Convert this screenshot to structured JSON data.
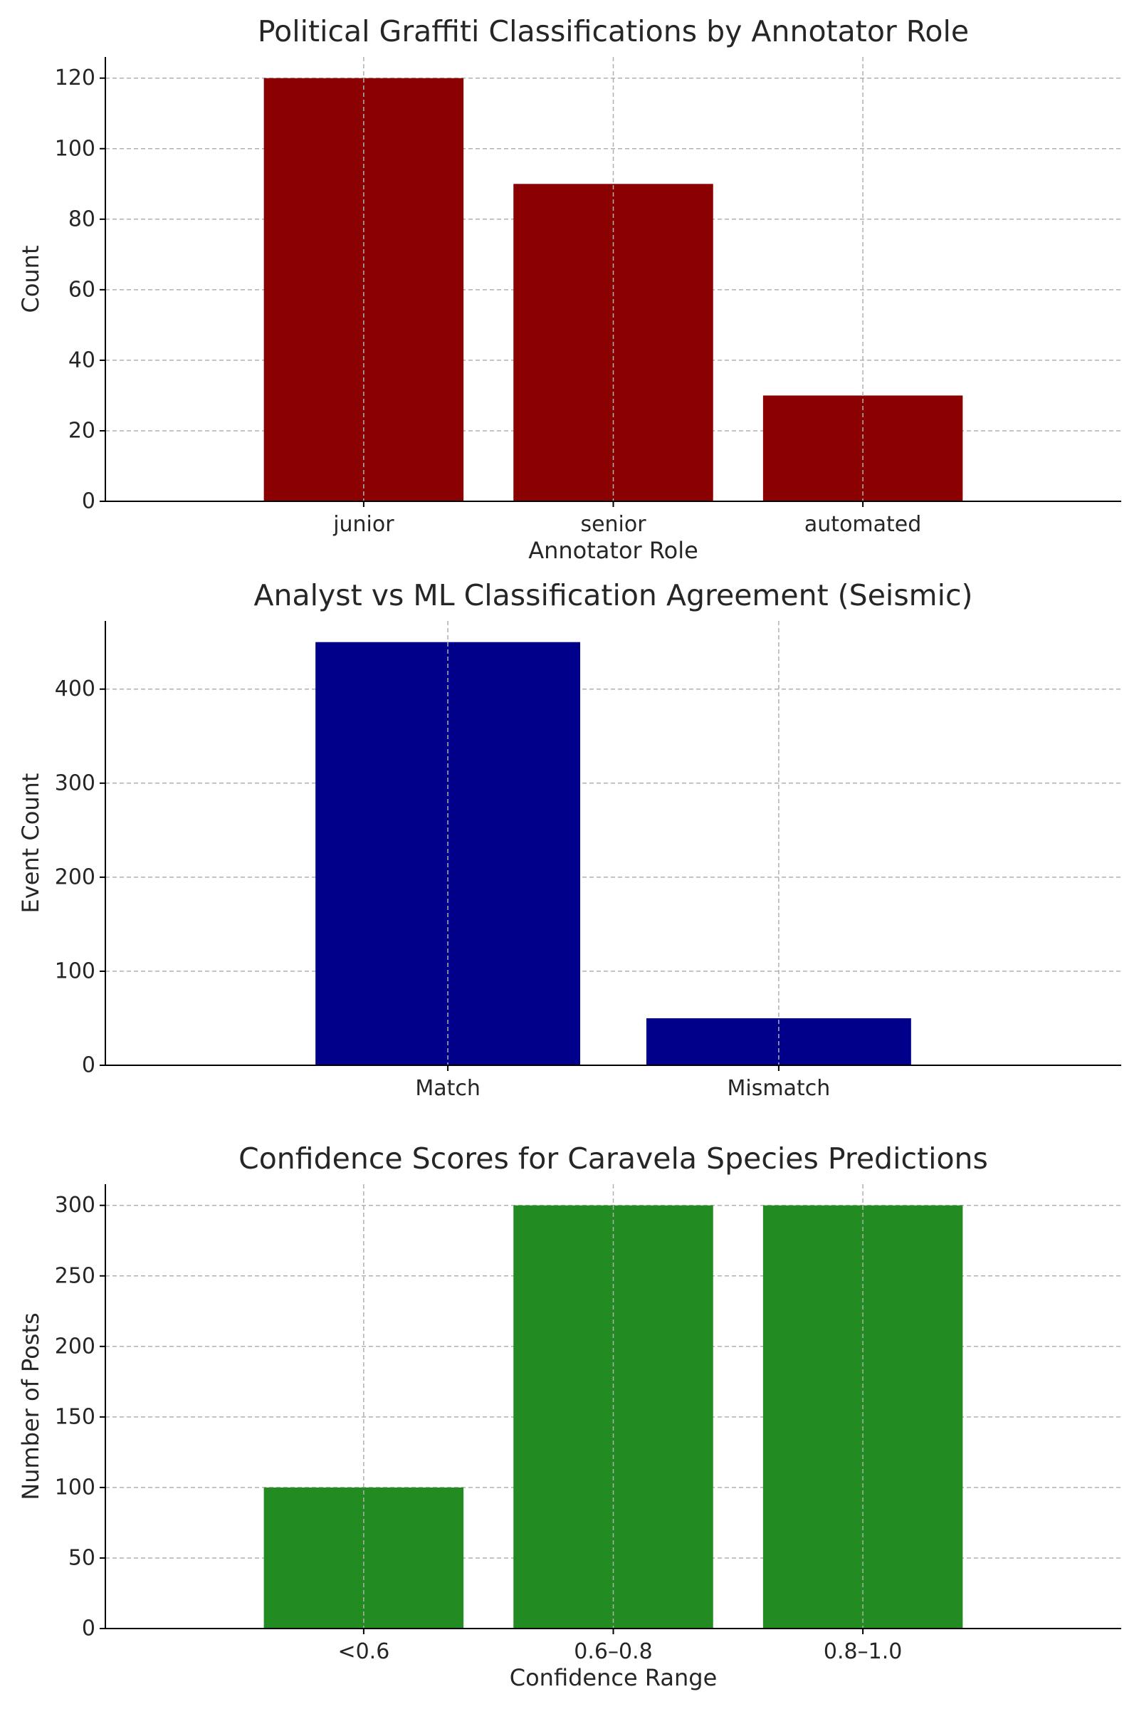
{
  "chart_data": [
    {
      "type": "bar",
      "title": "Political Graffiti Classifications by Annotator Role",
      "xlabel": "Annotator Role",
      "ylabel": "Count",
      "categories": [
        "junior",
        "senior",
        "automated"
      ],
      "values": [
        120,
        90,
        30
      ],
      "ylim": [
        0,
        126
      ],
      "yticks": [
        0,
        20,
        40,
        60,
        80,
        100,
        120
      ],
      "color": "#8b0000",
      "grid": true
    },
    {
      "type": "bar",
      "title": "Analyst vs ML Classification Agreement (Seismic)",
      "xlabel": "",
      "ylabel": "Event Count",
      "categories": [
        "Match",
        "Mismatch"
      ],
      "values": [
        450,
        50
      ],
      "ylim": [
        0,
        472.5
      ],
      "yticks": [
        0,
        100,
        200,
        300,
        400
      ],
      "color": "#00008b",
      "grid": true
    },
    {
      "type": "bar",
      "title": "Confidence Scores for Caravela Species Predictions",
      "xlabel": "Confidence Range",
      "ylabel": "Number of Posts",
      "categories": [
        "<0.6",
        "0.6–0.8",
        "0.8–1.0"
      ],
      "values": [
        100,
        300,
        300
      ],
      "ylim": [
        0,
        315
      ],
      "yticks": [
        0,
        50,
        100,
        150,
        200,
        250,
        300
      ],
      "color": "#228b22",
      "grid": true
    }
  ]
}
